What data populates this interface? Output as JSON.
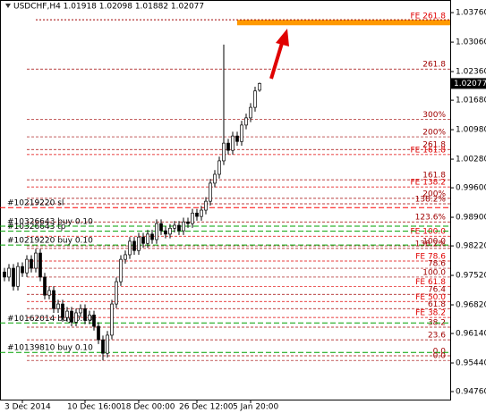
{
  "chart_data": {
    "type": "candlestick",
    "title": "USDCHF,H4  1.01918 1.02098 1.01882 1.02077",
    "open": [
      0.976,
      0.9748,
      0.9769,
      0.9726,
      0.9773,
      0.9758,
      0.979,
      0.9769,
      0.9805,
      0.9748,
      0.9705,
      0.9716,
      0.9673,
      0.9684,
      0.9652,
      0.9667,
      0.9641,
      0.9663,
      0.9673,
      0.9646,
      0.9658,
      0.9631,
      0.9599,
      0.9567,
      0.961,
      0.9684,
      0.9737,
      0.979,
      0.9801,
      0.9833,
      0.9811,
      0.9843,
      0.9828,
      0.985,
      0.9837,
      0.9875,
      0.9858,
      0.985,
      0.9864,
      0.9871,
      0.9858,
      0.9879,
      0.9875,
      0.99,
      0.9892,
      0.9907,
      0.9928,
      0.9971,
      0.9992,
      1.0024,
      1.0066,
      1.0049,
      1.0083,
      1.007,
      1.0109,
      1.0126,
      1.0151,
      1.01918
    ],
    "high": [
      0.977,
      0.9779,
      0.9779,
      0.9783,
      0.9783,
      0.98,
      0.98,
      0.9815,
      0.9815,
      0.9758,
      0.9726,
      0.9726,
      0.9694,
      0.9694,
      0.9677,
      0.9677,
      0.9673,
      0.9683,
      0.9683,
      0.9668,
      0.9668,
      0.9641,
      0.9609,
      0.962,
      0.9694,
      0.9747,
      0.98,
      0.9811,
      0.9843,
      0.9843,
      0.9853,
      0.9853,
      0.986,
      0.986,
      0.9885,
      0.9885,
      0.9868,
      0.9874,
      0.9881,
      0.9881,
      0.9889,
      0.9889,
      0.991,
      0.991,
      0.9917,
      0.9938,
      0.9981,
      1.0002,
      1.0034,
      1.03,
      1.0076,
      1.0093,
      1.0093,
      1.0119,
      1.0136,
      1.0161,
      1.02,
      1.02098
    ],
    "low": [
      0.9738,
      0.9738,
      0.9716,
      0.9716,
      0.9748,
      0.9748,
      0.9759,
      0.9759,
      0.9738,
      0.9695,
      0.9695,
      0.9663,
      0.9663,
      0.9642,
      0.9642,
      0.9631,
      0.9631,
      0.9653,
      0.9636,
      0.9636,
      0.9621,
      0.9589,
      0.955,
      0.9557,
      0.96,
      0.9674,
      0.9727,
      0.978,
      0.9791,
      0.9801,
      0.9801,
      0.9818,
      0.9818,
      0.9827,
      0.9827,
      0.9848,
      0.984,
      0.984,
      0.9854,
      0.9848,
      0.9848,
      0.9865,
      0.9865,
      0.9882,
      0.9882,
      0.9897,
      0.9918,
      0.9961,
      0.9982,
      1.0014,
      1.0039,
      1.0039,
      1.006,
      1.006,
      1.0099,
      1.0116,
      1.0141,
      1.01882
    ],
    "close": [
      0.9748,
      0.9769,
      0.9726,
      0.9773,
      0.9758,
      0.979,
      0.9769,
      0.9805,
      0.9748,
      0.9705,
      0.9716,
      0.9673,
      0.9684,
      0.9652,
      0.9667,
      0.9641,
      0.9663,
      0.9673,
      0.9646,
      0.9658,
      0.9631,
      0.9599,
      0.9567,
      0.961,
      0.9684,
      0.9737,
      0.979,
      0.9801,
      0.9833,
      0.9811,
      0.9843,
      0.9828,
      0.985,
      0.9837,
      0.9875,
      0.9858,
      0.985,
      0.9864,
      0.9871,
      0.9858,
      0.9879,
      0.9875,
      0.99,
      0.9892,
      0.9907,
      0.9928,
      0.9971,
      0.9992,
      1.0024,
      1.0066,
      1.0049,
      1.0083,
      1.007,
      1.0109,
      1.0126,
      1.0151,
      1.019,
      1.02077
    ],
    "xticks": [
      {
        "value": 4,
        "label": "3 Dec 2014"
      },
      {
        "value": 18,
        "label": "10 Dec 16:00"
      },
      {
        "value": 30,
        "label": "18 Dec 00:00"
      },
      {
        "value": 43,
        "label": "26 Dec 12:00"
      },
      {
        "value": 55,
        "label": "5 Jan 20:00"
      }
    ],
    "ylim": [
      0.9457,
      1.0406
    ],
    "yticks": [
      {
        "value": 1.0376,
        "label": "1.03760"
      },
      {
        "value": 1.0306,
        "label": "1.03060"
      },
      {
        "value": 1.0236,
        "label": "1.02360"
      },
      {
        "value": 1.0168,
        "label": "1.01680"
      },
      {
        "value": 1.0098,
        "label": "1.00980"
      },
      {
        "value": 1.0028,
        "label": "1.00280"
      },
      {
        "value": 0.996,
        "label": "0.99600"
      },
      {
        "value": 0.989,
        "label": "0.98900"
      },
      {
        "value": 0.9822,
        "label": "0.98220"
      },
      {
        "value": 0.9752,
        "label": "0.97520"
      },
      {
        "value": 0.9682,
        "label": "0.96820"
      },
      {
        "value": 0.9614,
        "label": "0.96140"
      },
      {
        "value": 0.9544,
        "label": "0.95440"
      },
      {
        "value": 0.9476,
        "label": "0.94760"
      }
    ],
    "last_price": {
      "value": 1.02077,
      "label": "1.02077"
    },
    "target_zone": {
      "label": "FE 261.8",
      "low": 1.0346,
      "high": 1.0359,
      "color": "#ff9900"
    },
    "levels": [
      {
        "label": "261.8",
        "value": 1.0242,
        "color": "#a00000"
      },
      {
        "label": "300%",
        "value": 1.0123,
        "color": "#a00000"
      },
      {
        "label": "200%",
        "value": 1.0081,
        "color": "#a00000"
      },
      {
        "label": "261.8",
        "value": 1.0051,
        "color": "#a00000"
      },
      {
        "label": "FE 161.8",
        "value": 1.0039,
        "color": "#e00000"
      },
      {
        "label": "161.8",
        "value": 0.9979,
        "color": "#a00000"
      },
      {
        "label": "FE 138.2",
        "value": 0.9962,
        "color": "#e00000"
      },
      {
        "label": "200%",
        "value": 0.9935,
        "color": "#a00000"
      },
      {
        "label": "138.2%",
        "value": 0.9922,
        "color": "#a00000"
      },
      {
        "label": "123.6%",
        "value": 0.9879,
        "color": "#a00000"
      },
      {
        "label": "FE 100.0",
        "value": 0.9845,
        "color": "#e00000"
      },
      {
        "label": "100.0",
        "value": 0.9822,
        "color": "#a00000"
      },
      {
        "label": "138.2%",
        "value": 0.9816,
        "color": "#a00000"
      },
      {
        "label": "FE 78.6",
        "value": 0.9786,
        "color": "#e00000"
      },
      {
        "label": "78.6",
        "value": 0.9769,
        "color": "#a00000"
      },
      {
        "label": "100.0",
        "value": 0.9748,
        "color": "#a00000"
      },
      {
        "label": "FE 61.8",
        "value": 0.9726,
        "color": "#e00000"
      },
      {
        "label": "76.4",
        "value": 0.9707,
        "color": "#a00000"
      },
      {
        "label": "FE 50.0",
        "value": 0.969,
        "color": "#e00000"
      },
      {
        "label": "61.8",
        "value": 0.9673,
        "color": "#a00000"
      },
      {
        "label": "FE 38.2",
        "value": 0.9652,
        "color": "#e00000"
      },
      {
        "label": "38.2",
        "value": 0.9629,
        "color": "#a00000"
      },
      {
        "label": "23.6",
        "value": 0.9599,
        "color": "#a00000"
      },
      {
        "label": "0.0",
        "value": 0.9561,
        "color": "#a00000"
      },
      {
        "label": "0.0",
        "value": 0.955,
        "color": "#a00000"
      }
    ],
    "orders": [
      {
        "label": "#10219220 sl",
        "value": 0.9913,
        "color": "#ff0000"
      },
      {
        "label": "#10326643 tp",
        "value": 0.9857,
        "color": "#00a000"
      },
      {
        "label": "#10326643 buy 0.10",
        "value": 0.9869,
        "color": "#00a000"
      },
      {
        "label": "#10219220 buy 0.10",
        "value": 0.9824,
        "color": "#00a000"
      },
      {
        "label": "#10162014 buy 0.10",
        "value": 0.9639,
        "color": "#00a000"
      },
      {
        "label": "#10139810 buy 0.10",
        "value": 0.9569,
        "color": "#00a000"
      }
    ]
  }
}
